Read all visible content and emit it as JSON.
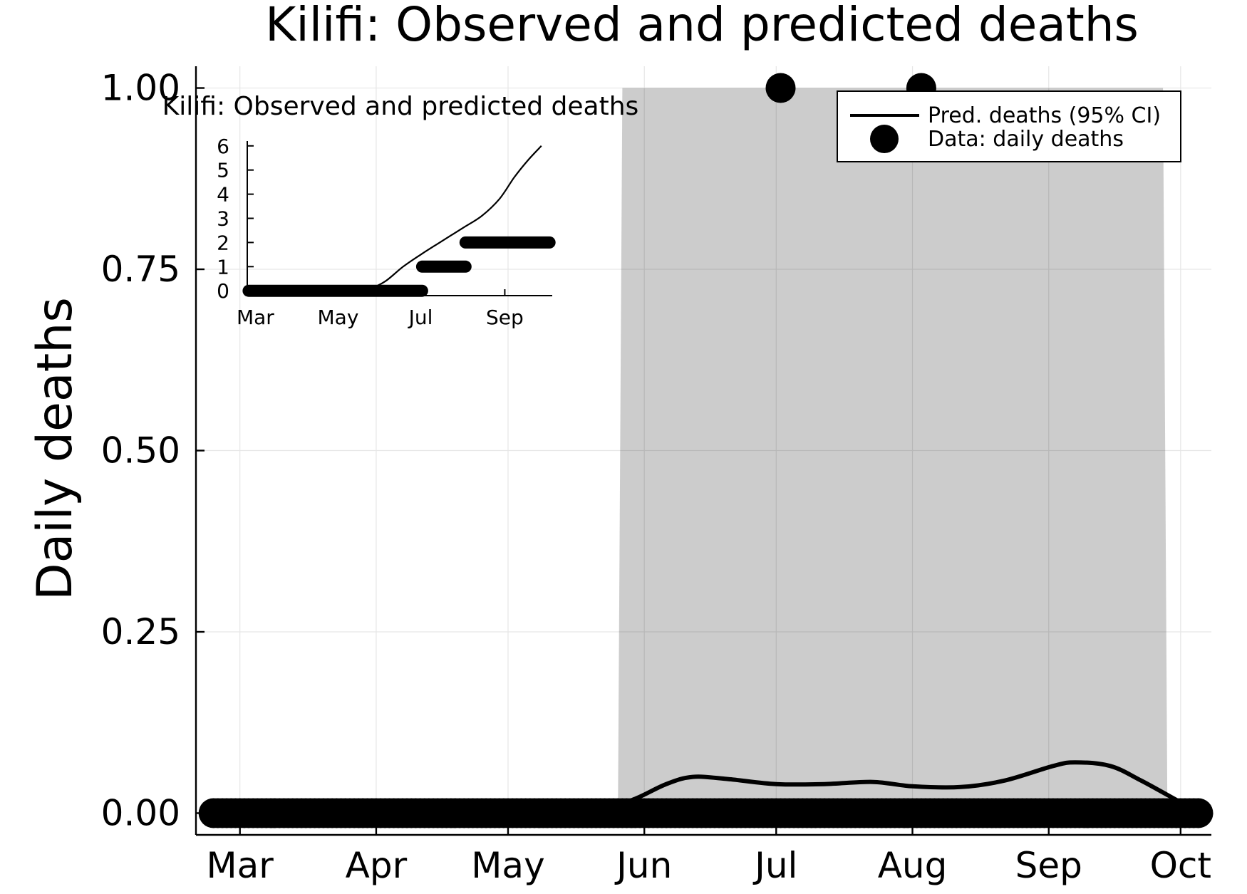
{
  "chart_data": [
    {
      "type": "line",
      "title": "Kilifi: Observed and predicted deaths",
      "xlabel": "",
      "ylabel": "Daily deaths",
      "x_axis": "date",
      "x_ticks": [
        "Mar",
        "Apr",
        "May",
        "Jun",
        "Jul",
        "Aug",
        "Sep",
        "Oct"
      ],
      "y_ticks": [
        "0.00",
        "0.25",
        "0.50",
        "0.75",
        "1.00"
      ],
      "ylim": [
        -0.03,
        1.03
      ],
      "xlim": [
        "2020-02-20",
        "2020-10-08"
      ],
      "grid": true,
      "legend_position": "top-right",
      "legend": [
        {
          "label": "Pred. deaths (95% CI)",
          "symbol": "line"
        },
        {
          "label": "Data: daily deaths",
          "symbol": "marker"
        }
      ],
      "ci_band": {
        "lower": 0,
        "upper": 1,
        "x": [
          "2020-05-26",
          "2020-05-27",
          "2020-09-27",
          "2020-09-28"
        ],
        "upper_values": [
          0,
          1,
          1,
          0
        ]
      },
      "series": [
        {
          "name": "Pred. deaths (95% CI)",
          "type": "line",
          "x": [
            "2020-02-24",
            "2020-05-10",
            "2020-05-22",
            "2020-05-30",
            "2020-06-06",
            "2020-06-12",
            "2020-06-20",
            "2020-07-01",
            "2020-07-12",
            "2020-07-23",
            "2020-08-01",
            "2020-08-12",
            "2020-08-22",
            "2020-09-02",
            "2020-09-07",
            "2020-09-15",
            "2020-09-22",
            "2020-10-01",
            "2020-10-05"
          ],
          "values": [
            0,
            0,
            0.003,
            0.02,
            0.04,
            0.05,
            0.047,
            0.04,
            0.04,
            0.043,
            0.037,
            0.036,
            0.045,
            0.065,
            0.07,
            0.065,
            0.045,
            0.015,
            0.003
          ]
        },
        {
          "name": "Data: daily deaths",
          "type": "scatter",
          "dense_zero_range": [
            "2020-02-24",
            "2020-10-05"
          ],
          "x": [
            "2020-07-02",
            "2020-08-03"
          ],
          "values": [
            1,
            1
          ]
        }
      ]
    },
    {
      "type": "line",
      "title": "Kilifi: Observed and predicted deaths",
      "xlabel": "",
      "ylabel": "",
      "x_axis": "date",
      "x_ticks": [
        "Mar",
        "May",
        "Jul",
        "Sep"
      ],
      "y_ticks": [
        "0",
        "1",
        "2",
        "3",
        "4",
        "5",
        "6"
      ],
      "ylim": [
        -0.2,
        6.2
      ],
      "xlim": [
        "2020-02-24",
        "2020-10-06"
      ],
      "grid": false,
      "series": [
        {
          "name": "Pred. deaths (95% CI)",
          "type": "line",
          "x": [
            "2020-02-25",
            "2020-05-15",
            "2020-05-25",
            "2020-06-05",
            "2020-06-18",
            "2020-07-01",
            "2020-07-15",
            "2020-08-01",
            "2020-08-15",
            "2020-08-28",
            "2020-09-08",
            "2020-09-18",
            "2020-09-28"
          ],
          "values": [
            0,
            0,
            0.1,
            0.4,
            1.0,
            1.5,
            2.0,
            2.6,
            3.1,
            3.8,
            4.7,
            5.4,
            6.0
          ]
        },
        {
          "name": "Data: daily deaths",
          "type": "step",
          "segments": [
            {
              "x": [
                "2020-02-25",
                "2020-07-02"
              ],
              "value": 0
            },
            {
              "x": [
                "2020-07-02",
                "2020-08-03"
              ],
              "value": 1
            },
            {
              "x": [
                "2020-08-03",
                "2020-10-04"
              ],
              "value": 2
            }
          ]
        }
      ]
    }
  ]
}
